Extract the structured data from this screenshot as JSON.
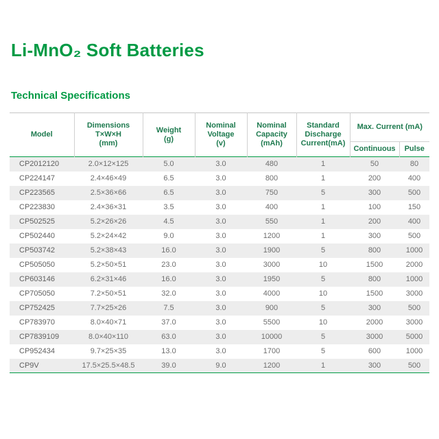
{
  "header": {
    "title": "Li-MnO₂ Soft Batteries",
    "subtitle": "Technical Specifications"
  },
  "table": {
    "columns": {
      "model": "Model",
      "dimensions": "Dimensions\nT×W×H\n(mm)",
      "weight": "Weight\n(g)",
      "voltage": "Nominal\nVoltage\n(v)",
      "capacity": "Nominal\nCapacity\n(mAh)",
      "discharge": "Standard\nDischarge\nCurrent(mA)",
      "max_current": "Max.  Current (mA)",
      "continuous": "Continuous",
      "pulse": "Pulse"
    },
    "rows": [
      [
        "CP2012120",
        "2.0×12×125",
        "5.0",
        "3.0",
        "480",
        "1",
        "50",
        "80"
      ],
      [
        "CP224147",
        "2.4×46×49",
        "6.5",
        "3.0",
        "800",
        "1",
        "200",
        "400"
      ],
      [
        "CP223565",
        "2.5×36×66",
        "6.5",
        "3.0",
        "750",
        "5",
        "300",
        "500"
      ],
      [
        "CP223830",
        "2.4×36×31",
        "3.5",
        "3.0",
        "400",
        "1",
        "100",
        "150"
      ],
      [
        "CP502525",
        "5.2×26×26",
        "4.5",
        "3.0",
        "550",
        "1",
        "200",
        "400"
      ],
      [
        "CP502440",
        "5.2×24×42",
        "9.0",
        "3.0",
        "1200",
        "1",
        "300",
        "500"
      ],
      [
        "CP503742",
        "5.2×38×43",
        "16.0",
        "3.0",
        "1900",
        "5",
        "800",
        "1000"
      ],
      [
        "CP505050",
        "5.2×50×51",
        "23.0",
        "3.0",
        "3000",
        "10",
        "1500",
        "2000"
      ],
      [
        "CP603146",
        "6.2×31×46",
        "16.0",
        "3.0",
        "1950",
        "5",
        "800",
        "1000"
      ],
      [
        "CP705050",
        "7.2×50×51",
        "32.0",
        "3.0",
        "4000",
        "10",
        "1500",
        "3000"
      ],
      [
        "CP752425",
        "7.7×25×26",
        "7.5",
        "3.0",
        "900",
        "5",
        "300",
        "500"
      ],
      [
        "CP783970",
        "8.0×40×71",
        "37.0",
        "3.0",
        "5500",
        "10",
        "2000",
        "3000"
      ],
      [
        "CP7839109",
        "8.0×40×110",
        "63.0",
        "3.0",
        "10000",
        "5",
        "3000",
        "5000"
      ],
      [
        "CP952434",
        "9.7×25×35",
        "13.0",
        "3.0",
        "1700",
        "5",
        "600",
        "1000"
      ],
      [
        "CP9V",
        "17.5×25.5×48.5",
        "39.0",
        "9.0",
        "1200",
        "1",
        "300",
        "500"
      ]
    ]
  }
}
